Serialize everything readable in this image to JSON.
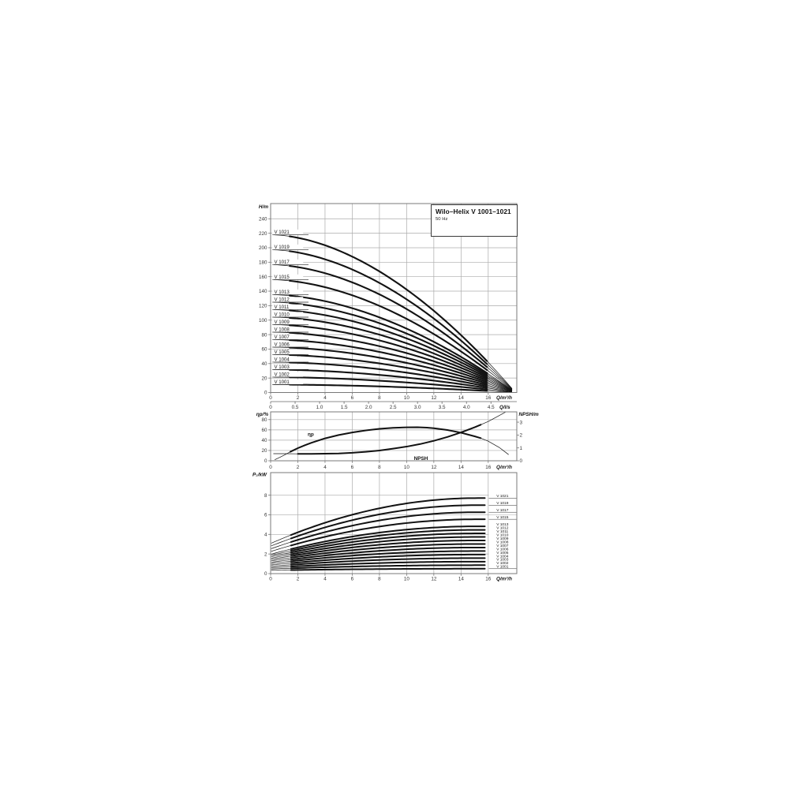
{
  "title_box": {
    "title": "Wilo–Helix V 1001–1021",
    "subtitle": "50 Hz"
  },
  "colors": {
    "curve": "#121212",
    "grid": "#ababab",
    "frame": "#787878",
    "text": "#333333",
    "label_text": "#111111"
  },
  "chart_data": [
    {
      "type": "line",
      "name": "head-flow-curves",
      "ylabel": "H/m",
      "xlabel": "Q/m³/h",
      "xlim": [
        0,
        18.1
      ],
      "ylim": [
        0,
        261
      ],
      "grid": true,
      "xticks": [
        0,
        2,
        4,
        6,
        8,
        10,
        12,
        14,
        16
      ],
      "yticks": [
        0,
        20,
        40,
        60,
        80,
        100,
        120,
        140,
        160,
        180,
        200,
        220,
        240
      ],
      "secondary_xaxis": {
        "label": "Q/l/s",
        "ticks": [
          {
            "q": 0,
            "label": "0"
          },
          {
            "q": 1.8,
            "label": "0.5"
          },
          {
            "q": 3.6,
            "label": "1.0"
          },
          {
            "q": 5.4,
            "label": "1.5"
          },
          {
            "q": 7.2,
            "label": "2.0"
          },
          {
            "q": 9.0,
            "label": "2.5"
          },
          {
            "q": 10.8,
            "label": "3.0"
          },
          {
            "q": 12.6,
            "label": "3.5"
          },
          {
            "q": 14.4,
            "label": "4.0"
          },
          {
            "q": 16.2,
            "label": "4.5"
          }
        ]
      },
      "curve_model": {
        "q_zero": 18.0,
        "exponent": 1.8,
        "q_draw": [
          0.25,
          17.75
        ],
        "q_thick": [
          1.4,
          15.9
        ]
      },
      "series": [
        {
          "label": "V 1021",
          "h0": 217.9
        },
        {
          "label": "V 1019",
          "h0": 197.2
        },
        {
          "label": "V 1017",
          "h0": 176.6
        },
        {
          "label": "V 1015",
          "h0": 155.9
        },
        {
          "label": "V 1013",
          "h0": 135.2
        },
        {
          "label": "V 1012",
          "h0": 124.8
        },
        {
          "label": "V 1011",
          "h0": 114.5
        },
        {
          "label": "V 1010",
          "h0": 104.1
        },
        {
          "label": "V 1009",
          "h0": 93.8
        },
        {
          "label": "V 1008",
          "h0": 83.4
        },
        {
          "label": "V 1007",
          "h0": 73.1
        },
        {
          "label": "V 1006",
          "h0": 62.7
        },
        {
          "label": "V 1005",
          "h0": 52.4
        },
        {
          "label": "V 1004",
          "h0": 42.0
        },
        {
          "label": "V 1003",
          "h0": 31.7
        },
        {
          "label": "V 1002",
          "h0": 21.3
        },
        {
          "label": "V 1001",
          "h0": 11.0
        }
      ]
    },
    {
      "type": "line",
      "name": "efficiency-npsh",
      "xlabel": "Q/m³/h",
      "xticks": [
        0,
        2,
        4,
        6,
        8,
        10,
        12,
        14,
        16
      ],
      "left_axis": {
        "label": "ηp/%",
        "ticks": [
          0,
          20,
          40,
          60,
          80
        ],
        "max": 95
      },
      "right_axis": {
        "label": "NPSH/m",
        "ticks": [
          0,
          1,
          2,
          3
        ],
        "max": 3.8
      },
      "series": [
        {
          "label": "ηp",
          "axis": "left",
          "thick_range": [
            1.45,
            15.45
          ],
          "label_pos": {
            "q": 2.95,
            "v": 45
          },
          "points": [
            [
              0.3,
              2
            ],
            [
              0.7,
              7
            ],
            [
              1,
              11
            ],
            [
              1.45,
              17.5
            ],
            [
              2,
              24.5
            ],
            [
              2.5,
              30
            ],
            [
              3,
              35
            ],
            [
              4,
              43.5
            ],
            [
              5,
              50
            ],
            [
              6,
              55
            ],
            [
              7,
              59
            ],
            [
              8,
              62
            ],
            [
              9,
              64
            ],
            [
              10,
              65
            ],
            [
              10.8,
              65.2
            ],
            [
              11.5,
              64.3
            ],
            [
              12,
              63.2
            ],
            [
              13,
              59.8
            ],
            [
              14,
              54.5
            ],
            [
              15,
              47.5
            ],
            [
              15.45,
              44
            ],
            [
              16,
              38
            ],
            [
              16.8,
              26
            ],
            [
              17.5,
              12
            ]
          ]
        },
        {
          "label": "NPSH",
          "axis": "right",
          "thick_range": [
            1.45,
            15.45
          ],
          "label_pos": {
            "q": 11.05,
            "v": 0.55
          },
          "points": [
            [
              0.2,
              0.55
            ],
            [
              1,
              0.55
            ],
            [
              2,
              0.54
            ],
            [
              3,
              0.54
            ],
            [
              4,
              0.55
            ],
            [
              5,
              0.57
            ],
            [
              6,
              0.62
            ],
            [
              7,
              0.7
            ],
            [
              8,
              0.8
            ],
            [
              9,
              0.94
            ],
            [
              10,
              1.1
            ],
            [
              11,
              1.3
            ],
            [
              12,
              1.55
            ],
            [
              13,
              1.85
            ],
            [
              14,
              2.2
            ],
            [
              15,
              2.6
            ],
            [
              15.45,
              2.8
            ],
            [
              16,
              3.05
            ],
            [
              16.7,
              3.45
            ],
            [
              17.3,
              3.8
            ]
          ]
        }
      ]
    },
    {
      "type": "line",
      "name": "power-flow-curves",
      "ylabel": "P₂/kW",
      "xlabel": "Q/m³/h",
      "xlim": [
        0,
        18.1
      ],
      "ylim": [
        0,
        10.3
      ],
      "xticks": [
        0,
        2,
        4,
        6,
        8,
        10,
        12,
        14,
        16
      ],
      "yticks": [
        0,
        2,
        4,
        6,
        8
      ],
      "curve_model": {
        "q_flat": 15.2,
        "q_draw": [
          0.05,
          15.85
        ],
        "q_thick": [
          1.5,
          15.85
        ]
      },
      "series": [
        {
          "label": "V 1021",
          "p0": 3.07,
          "p_end": 7.7
        },
        {
          "label": "V 1019",
          "p0": 2.8,
          "p_end": 6.98
        },
        {
          "label": "V 1017",
          "p0": 2.52,
          "p_end": 6.26
        },
        {
          "label": "V 1015",
          "p0": 2.25,
          "p_end": 5.54
        },
        {
          "label": "V 1013",
          "p0": 1.97,
          "p_end": 4.82
        },
        {
          "label": "V 1012",
          "p0": 1.84,
          "p_end": 4.46
        },
        {
          "label": "V 1011",
          "p0": 1.7,
          "p_end": 4.1
        },
        {
          "label": "V 1010",
          "p0": 1.56,
          "p_end": 3.74
        },
        {
          "label": "V 1009",
          "p0": 1.43,
          "p_end": 3.38
        },
        {
          "label": "V 1008",
          "p0": 1.29,
          "p_end": 3.02
        },
        {
          "label": "V 1007",
          "p0": 1.15,
          "p_end": 2.66
        },
        {
          "label": "V 1006",
          "p0": 1.02,
          "p_end": 2.3
        },
        {
          "label": "V 1005",
          "p0": 0.88,
          "p_end": 1.94
        },
        {
          "label": "V 1004",
          "p0": 0.74,
          "p_end": 1.58
        },
        {
          "label": "V 1003",
          "p0": 0.6,
          "p_end": 1.22
        },
        {
          "label": "V 1002",
          "p0": 0.47,
          "p_end": 0.86
        },
        {
          "label": "V 1001",
          "p0": 0.33,
          "p_end": 0.5
        }
      ]
    }
  ]
}
